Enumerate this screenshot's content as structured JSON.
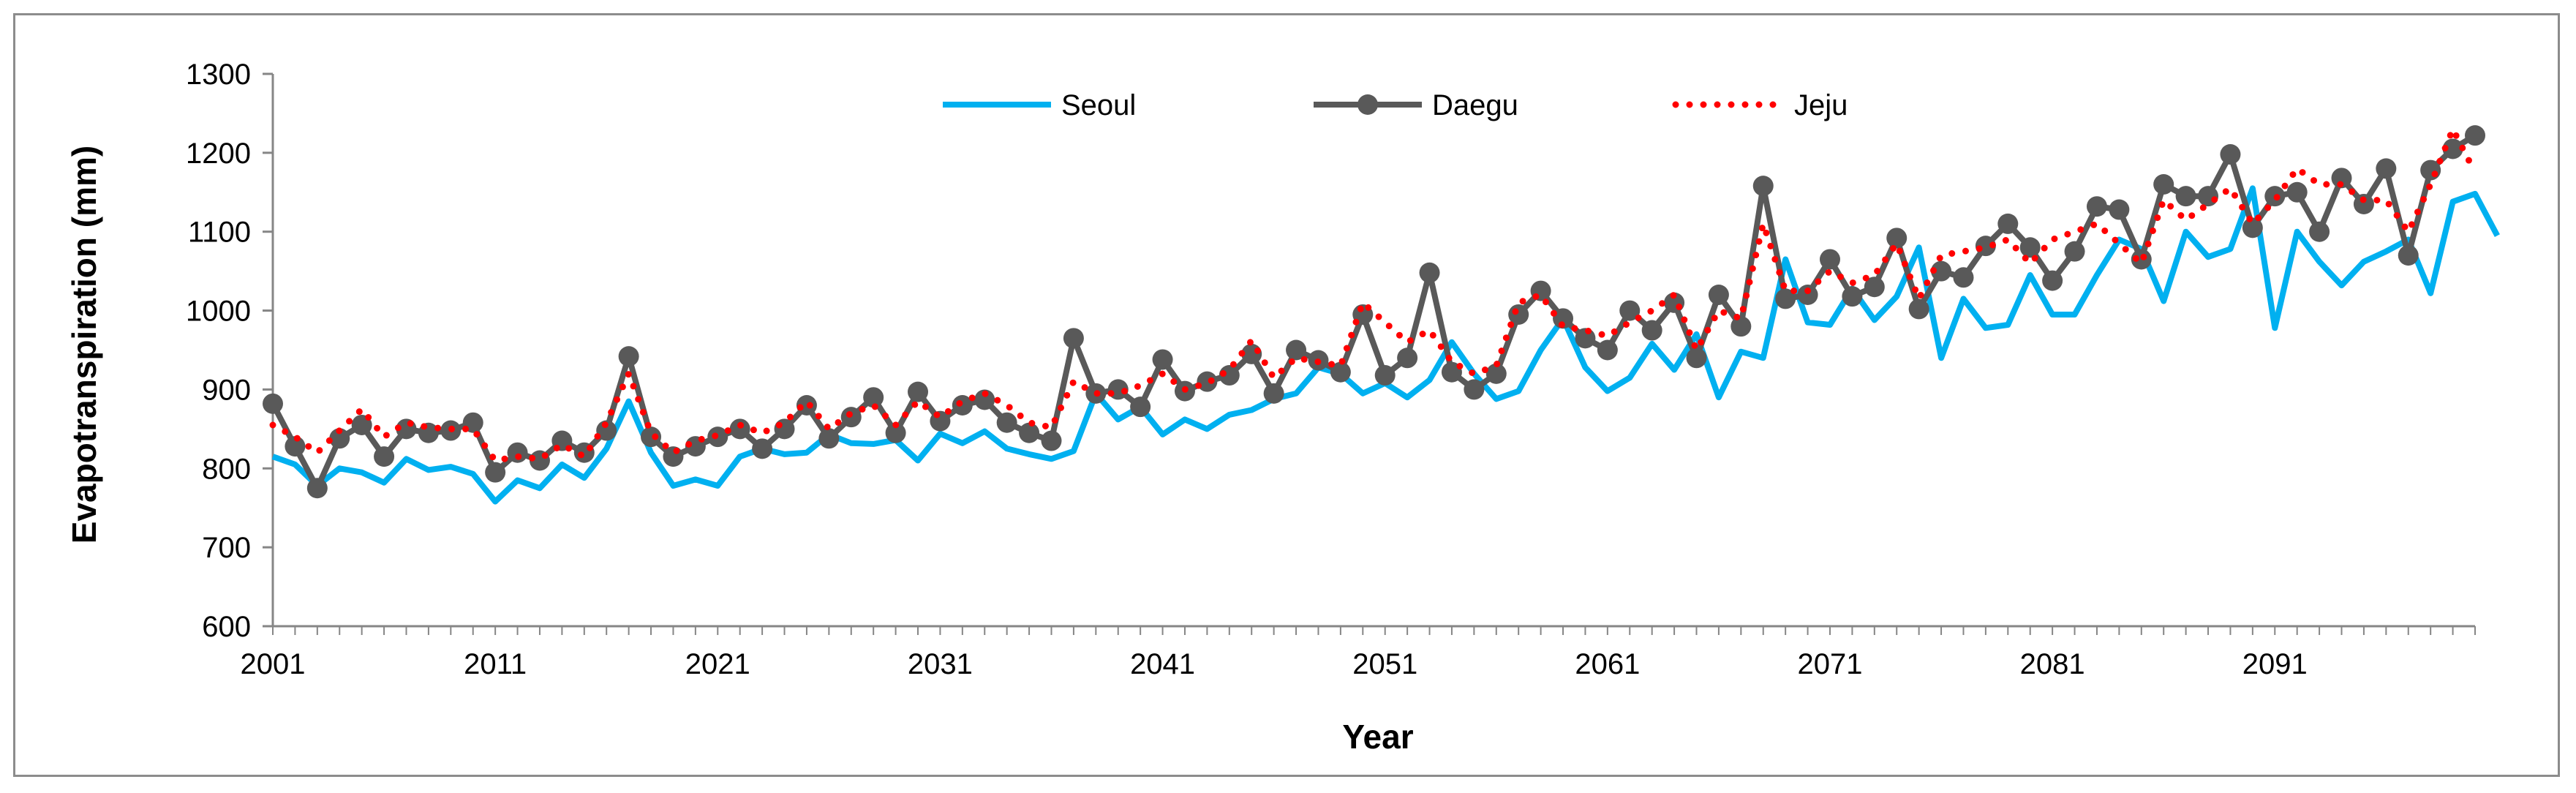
{
  "chart_data": {
    "type": "line",
    "title": "",
    "xlabel": "Year",
    "ylabel": "Evapotranspiration (mm)",
    "ylim": [
      600,
      1300
    ],
    "yticks": [
      600,
      700,
      800,
      900,
      1000,
      1100,
      1200,
      1300
    ],
    "xlim": [
      2001,
      2100
    ],
    "xtick_labels": [
      "2001",
      "2011",
      "2021",
      "2031",
      "2041",
      "2051",
      "2061",
      "2071",
      "2081",
      "2091"
    ],
    "legend_position": "top-center",
    "x_start": 2001,
    "series": [
      {
        "name": "Seoul",
        "color": "#00B0F0",
        "style": "solid",
        "values": [
          815,
          805,
          778,
          800,
          795,
          782,
          812,
          798,
          802,
          793,
          758,
          785,
          775,
          805,
          788,
          825,
          885,
          820,
          778,
          786,
          778,
          815,
          825,
          818,
          820,
          843,
          832,
          831,
          836,
          810,
          844,
          832,
          847,
          825,
          818,
          812,
          822,
          895,
          862,
          878,
          843,
          862,
          850,
          868,
          874,
          888,
          895,
          928,
          920,
          895,
          908,
          890,
          912,
          960,
          920,
          888,
          898,
          950,
          990,
          928,
          898,
          915,
          958,
          925,
          970,
          890,
          948,
          940,
          1065,
          985,
          982,
          1028,
          988,
          1018,
          1080,
          940,
          1015,
          978,
          982,
          1045,
          995,
          995,
          1045,
          1090,
          1078,
          1012,
          1100,
          1068,
          1078,
          1155,
          978,
          1100,
          1062,
          1032,
          1062,
          1075,
          1090,
          1022,
          1138,
          1148,
          1095
        ]
      },
      {
        "name": "Daegu",
        "color": "#595959",
        "style": "solid-marker",
        "values": [
          882,
          828,
          775,
          838,
          855,
          815,
          850,
          845,
          848,
          858,
          795,
          820,
          810,
          835,
          820,
          848,
          942,
          840,
          815,
          828,
          840,
          850,
          825,
          850,
          880,
          838,
          865,
          890,
          845,
          897,
          860,
          880,
          887,
          858,
          845,
          835,
          965,
          895,
          900,
          878,
          938,
          898,
          910,
          918,
          945,
          895,
          950,
          937,
          922,
          995,
          918,
          940,
          1048,
          922,
          900,
          920,
          995,
          1025,
          990,
          965,
          950,
          1000,
          975,
          1010,
          940,
          1020,
          980,
          1158,
          1015,
          1020,
          1065,
          1018,
          1030,
          1092,
          1002,
          1050,
          1042,
          1082,
          1110,
          1080,
          1038,
          1075,
          1132,
          1128,
          1065,
          1160,
          1145,
          1145,
          1198,
          1105,
          1145,
          1150,
          1100,
          1168,
          1135,
          1180,
          1070,
          1178,
          1205,
          1222
        ]
      },
      {
        "name": "Jeju",
        "color": "#FF0000",
        "style": "dotted",
        "values": [
          855,
          840,
          820,
          848,
          875,
          840,
          858,
          852,
          850,
          850,
          810,
          815,
          812,
          830,
          815,
          858,
          920,
          845,
          820,
          835,
          842,
          855,
          845,
          858,
          885,
          850,
          870,
          880,
          855,
          885,
          865,
          885,
          895,
          880,
          858,
          852,
          910,
          895,
          895,
          905,
          920,
          900,
          908,
          925,
          962,
          915,
          940,
          935,
          930,
          1010,
          985,
          960,
          975,
          935,
          920,
          930,
          1010,
          1020,
          980,
          975,
          968,
          985,
          1000,
          1020,
          950,
          1000,
          990,
          1110,
          1025,
          1025,
          1050,
          1035,
          1045,
          1085,
          1015,
          1070,
          1075,
          1080,
          1090,
          1060,
          1090,
          1100,
          1110,
          1085,
          1060,
          1140,
          1115,
          1135,
          1155,
          1110,
          1140,
          1180,
          1160,
          1160,
          1140,
          1140,
          1100,
          1160,
          1230,
          1175
        ]
      }
    ]
  }
}
